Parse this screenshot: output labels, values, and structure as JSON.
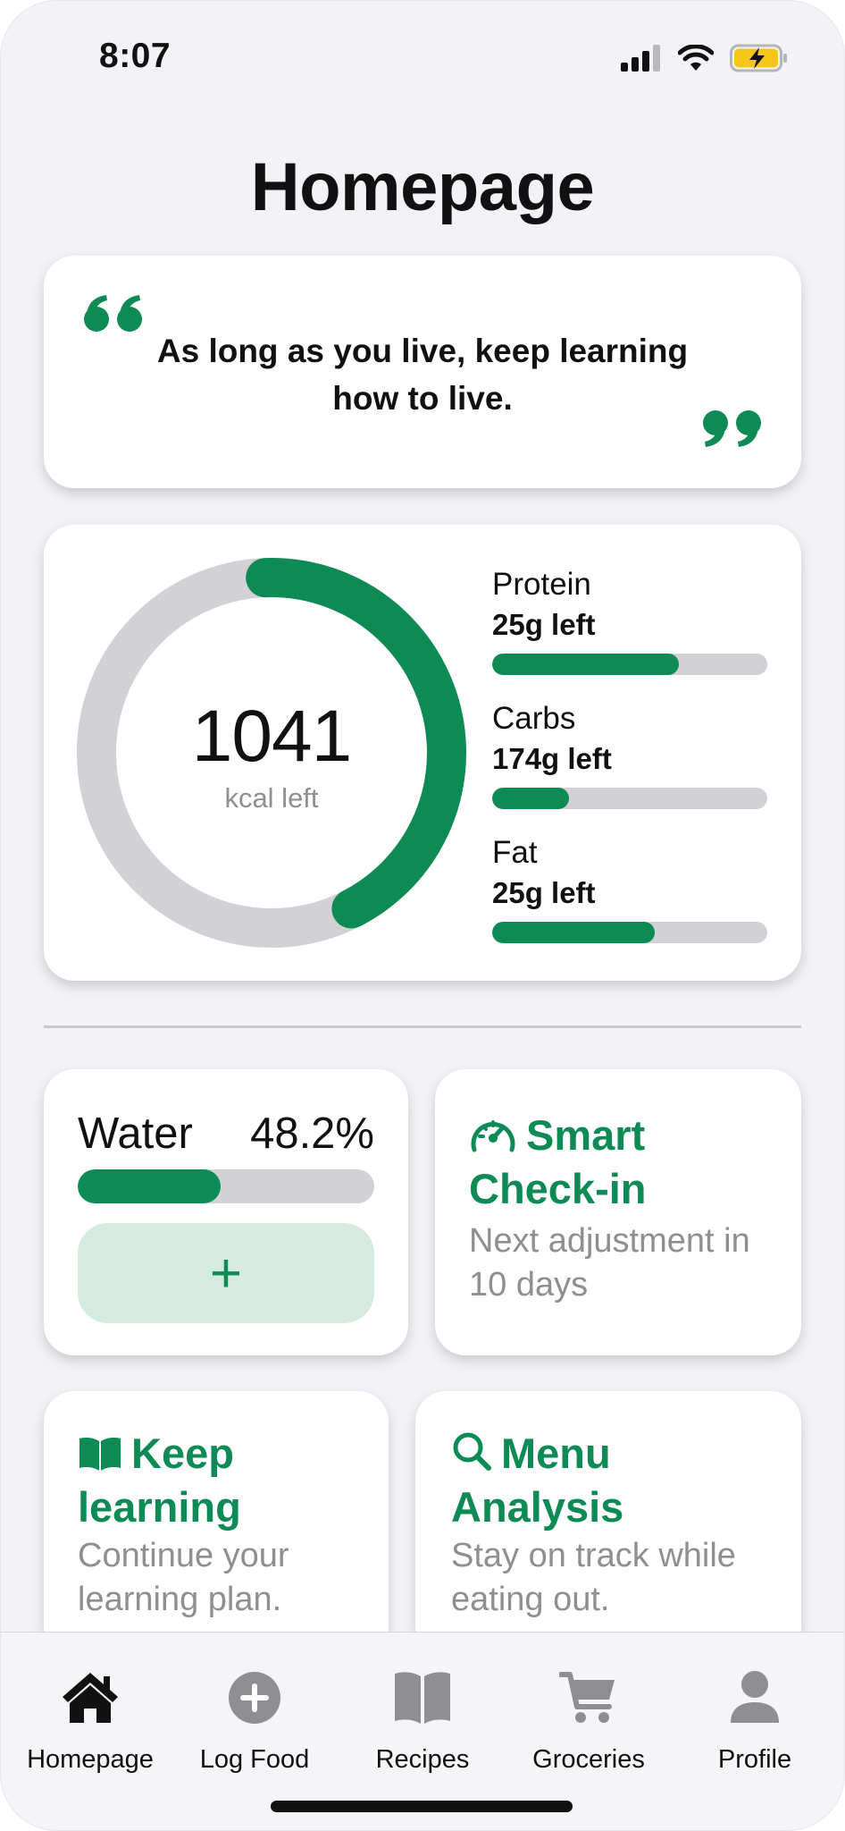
{
  "status": {
    "time": "8:07"
  },
  "page": {
    "title": "Homepage"
  },
  "quote": {
    "text": "As long as you live, keep learning how to live."
  },
  "calories": {
    "value": "1041",
    "label": "kcal left",
    "progress_fraction": 0.43
  },
  "macros": [
    {
      "name": "Protein",
      "left": "25g left",
      "fraction": 0.68
    },
    {
      "name": "Carbs",
      "left": "174g left",
      "fraction": 0.28
    },
    {
      "name": "Fat",
      "left": "25g left",
      "fraction": 0.59
    }
  ],
  "water": {
    "label": "Water",
    "value": "48.2%",
    "fraction": 0.482,
    "add_label": "+"
  },
  "checkin": {
    "title": "Smart Check-in",
    "subtitle": "Next adjustment in 10 days",
    "icon": "gauge-icon"
  },
  "learning": {
    "title": "Keep learning",
    "subtitle": "Continue your learning plan.",
    "icon": "book-icon"
  },
  "menu": {
    "title": "Menu Analysis",
    "subtitle": "Stay on track while eating out.",
    "icon": "magnifier-icon"
  },
  "tabs": [
    {
      "label": "Homepage",
      "icon": "house-icon",
      "active": true
    },
    {
      "label": "Log Food",
      "icon": "plus-circle-icon",
      "active": false
    },
    {
      "label": "Recipes",
      "icon": "book-icon",
      "active": false
    },
    {
      "label": "Groceries",
      "icon": "cart-icon",
      "active": false
    },
    {
      "label": "Profile",
      "icon": "person-icon",
      "active": false
    }
  ],
  "colors": {
    "accent": "#0e8a55",
    "track": "#d1d1d6",
    "background": "#f2f2f7",
    "muted_text": "#8e8e93"
  }
}
